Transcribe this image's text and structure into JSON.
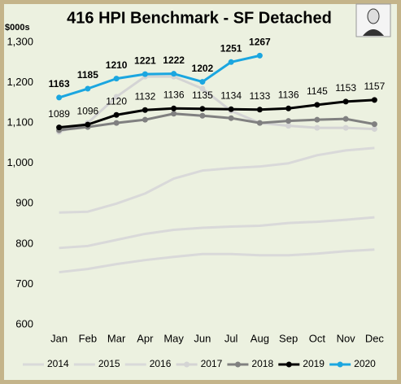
{
  "chart_data": {
    "type": "line",
    "title": "416 HPI Benchmark - SF Detached",
    "y_label": "$000s",
    "categories": [
      "Jan",
      "Feb",
      "Mar",
      "Apr",
      "May",
      "Jun",
      "Jul",
      "Aug",
      "Sep",
      "Oct",
      "Nov",
      "Dec"
    ],
    "ylim": [
      600,
      1300
    ],
    "yticks": [
      600,
      700,
      800,
      900,
      {
        "value": 1000,
        "label": "1,000"
      },
      {
        "value": 1100,
        "label": "1,100"
      },
      {
        "value": 1200,
        "label": "1,200"
      },
      {
        "value": 1300,
        "label": "1,300"
      }
    ],
    "legend": "bottom",
    "series": [
      {
        "name": "2014",
        "color": "#d9d9d9",
        "markers": false,
        "labels": false,
        "values": [
          730,
          738,
          750,
          760,
          768,
          775,
          775,
          772,
          772,
          776,
          782,
          786
        ]
      },
      {
        "name": "2015",
        "color": "#d9d9d9",
        "markers": false,
        "labels": false,
        "values": [
          790,
          795,
          810,
          825,
          835,
          840,
          843,
          845,
          852,
          855,
          860,
          866
        ]
      },
      {
        "name": "2016",
        "color": "#d9d9d9",
        "markers": false,
        "labels": false,
        "values": [
          878,
          880,
          900,
          925,
          962,
          982,
          988,
          992,
          1000,
          1020,
          1032,
          1038
        ]
      },
      {
        "name": "2017",
        "color": "#d4d4d4",
        "markers": true,
        "labels": false,
        "values": [
          1078,
          1100,
          1165,
          1215,
          1215,
          1185,
          1130,
          1100,
          1093,
          1088,
          1088,
          1085
        ]
      },
      {
        "name": "2018",
        "color": "#808080",
        "markers": true,
        "labels": false,
        "values": [
          1082,
          1090,
          1100,
          1108,
          1123,
          1118,
          1112,
          1100,
          1105,
          1108,
          1110,
          1097
        ]
      },
      {
        "name": "2019",
        "color": "#000000",
        "markers": true,
        "labels": true,
        "values": [
          1089,
          1096,
          1120,
          1132,
          1136,
          1135,
          1134,
          1133,
          1136,
          1145,
          1153,
          1157
        ]
      },
      {
        "name": "2020",
        "color": "#1ba6e0",
        "markers": true,
        "labels": true,
        "values": [
          1163,
          1185,
          1210,
          1221,
          1222,
          1202,
          1251,
          1267,
          null,
          null,
          null,
          null
        ]
      }
    ]
  }
}
